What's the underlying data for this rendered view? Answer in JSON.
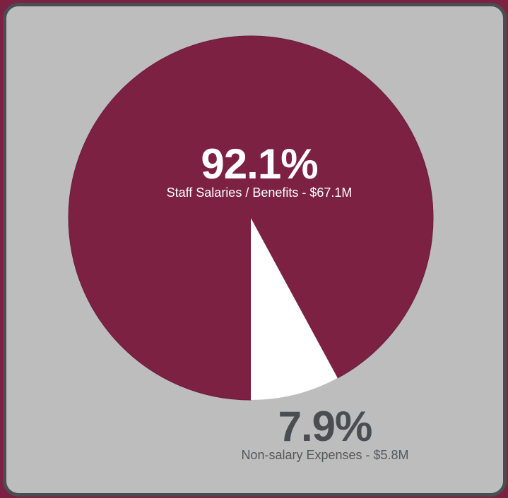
{
  "colors": {
    "background": "#7c2142",
    "card": "#bdbdbd",
    "border": "#4a4d51",
    "staff_slice": "#7c2142",
    "non_salary_slice": "#ffffff",
    "dark_text": "#4a4d51"
  },
  "chart_data": {
    "type": "pie",
    "title": "",
    "slices": [
      {
        "label": "Staff Salaries / Benefits - $67.1M",
        "percent_label": "92.1%",
        "value": 92.1,
        "amount": "$67.1M",
        "color": "#7c2142"
      },
      {
        "label": "Non-salary Expenses - $5.8M",
        "percent_label": "7.9%",
        "value": 7.9,
        "amount": "$5.8M",
        "color": "#ffffff"
      }
    ]
  }
}
